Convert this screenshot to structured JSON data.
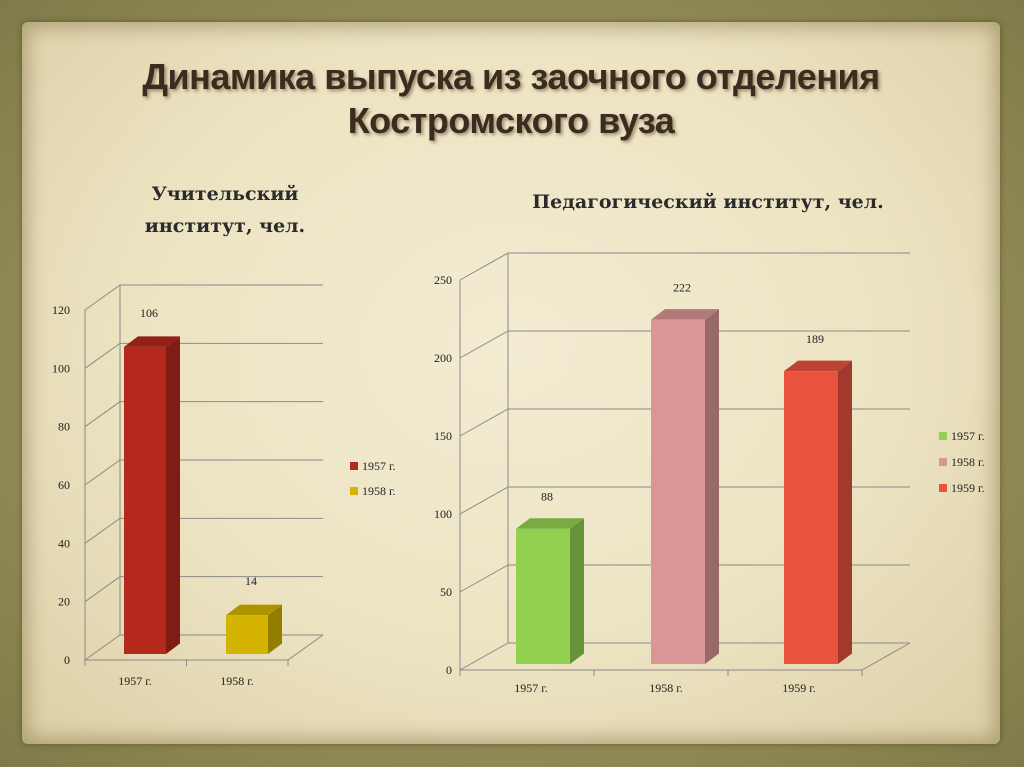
{
  "slide": {
    "title_line1": "Динамика выпуска из заочного отделения",
    "title_line2": "Костромского вуза"
  },
  "chart_data": [
    {
      "type": "bar",
      "heading_lines": [
        "Учительский",
        "институт, чел."
      ],
      "categories": [
        "1957 г.",
        "1958 г."
      ],
      "values": [
        106,
        14
      ],
      "colors": [
        "#b5281c",
        "#d4b400"
      ],
      "legend": [
        "1957 г.",
        "1958 г."
      ],
      "ylim": [
        0,
        120
      ],
      "yticks": [
        0,
        20,
        40,
        60,
        80,
        100,
        120
      ],
      "grid": true,
      "legend_position": "right"
    },
    {
      "type": "bar",
      "heading_lines": [
        "Педагогический институт, чел."
      ],
      "categories": [
        "1957 г.",
        "1958 г.",
        "1959 г."
      ],
      "values": [
        88,
        222,
        189
      ],
      "colors": [
        "#92d050",
        "#d99694",
        "#e9523f"
      ],
      "legend": [
        "1957 г.",
        "1958 г.",
        "1959 г."
      ],
      "ylim": [
        0,
        250
      ],
      "yticks": [
        0,
        50,
        100,
        150,
        200,
        250
      ],
      "grid": true,
      "legend_position": "right"
    }
  ]
}
